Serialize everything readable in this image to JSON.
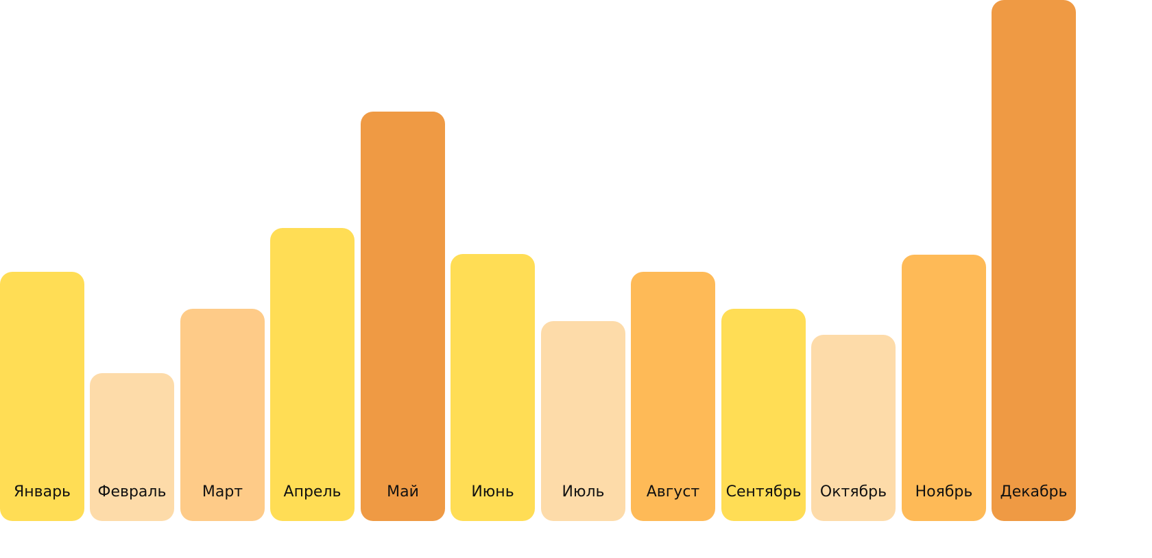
{
  "chart_data": {
    "type": "bar",
    "title": "",
    "xlabel": "",
    "ylabel": "",
    "ylim": [
      0,
      100
    ],
    "grid": false,
    "categories": [
      "Январь",
      "Февраль",
      "Март",
      "Апрель",
      "Май",
      "Июнь",
      "Июль",
      "Август",
      "Сентябрь",
      "Октябрь",
      "Ноябрь",
      "Декабрь"
    ],
    "values": [
      47.8,
      28.4,
      40.8,
      56.3,
      78.6,
      51.2,
      38.4,
      47.8,
      40.8,
      35.7,
      51.1,
      100
    ],
    "colors": [
      "#FFDD55",
      "#FDDBA9",
      "#FECB88",
      "#FFDD55",
      "#EF9A44",
      "#FFDD55",
      "#FDDBA9",
      "#FEBA57",
      "#FFDD55",
      "#FDDBA9",
      "#FEBA57",
      "#EF9A44"
    ]
  }
}
